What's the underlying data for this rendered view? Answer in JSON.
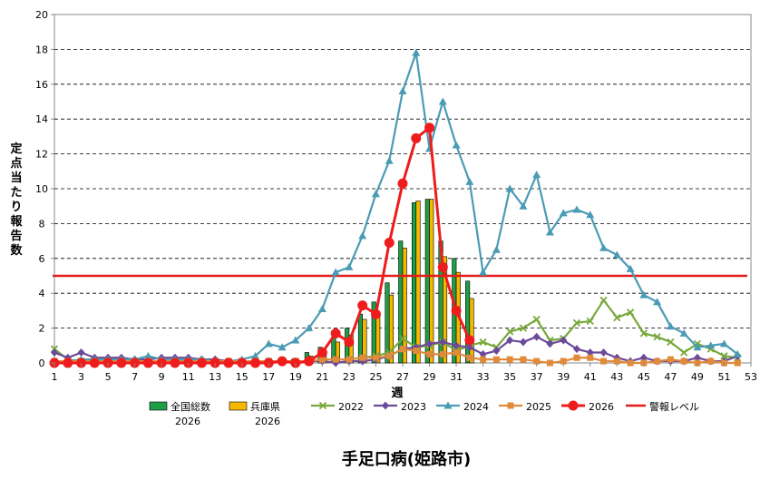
{
  "chart_data": {
    "type": "bar+line",
    "title": "手足口病(姫路市)",
    "ylabel": "定点当たり報告数",
    "xlabel": "週",
    "ylim": [
      0,
      20
    ],
    "yticks": [
      0,
      2,
      4,
      6,
      8,
      10,
      12,
      14,
      16,
      18,
      20
    ],
    "xlim": [
      1,
      53
    ],
    "xticks": [
      1,
      3,
      5,
      7,
      9,
      11,
      13,
      15,
      17,
      19,
      21,
      23,
      25,
      27,
      29,
      31,
      33,
      35,
      37,
      39,
      41,
      43,
      45,
      47,
      49,
      51,
      53
    ],
    "alert_level": 5,
    "alert_label": "警報レベル",
    "grid": "horizontal dashed",
    "legend_position": "bottom",
    "bar_series": [
      {
        "name": "全国総数",
        "name2": "2026",
        "color": "#1f9e48",
        "x": [
          19,
          20,
          21,
          22,
          23,
          24,
          25,
          26,
          27,
          28,
          29,
          30,
          31,
          32
        ],
        "values": [
          0.2,
          0.6,
          0.9,
          1.5,
          2.0,
          2.8,
          3.5,
          4.6,
          7.0,
          9.2,
          9.4,
          7.0,
          6.0,
          4.7
        ]
      },
      {
        "name": "兵庫県",
        "name2": "2026",
        "color": "#f5b800",
        "x": [
          19,
          20,
          21,
          22,
          23,
          24,
          25,
          26,
          27,
          28,
          29,
          30,
          31,
          32
        ],
        "values": [
          0.1,
          0.4,
          0.6,
          1.2,
          1.6,
          2.5,
          2.8,
          3.9,
          6.6,
          9.3,
          9.4,
          6.1,
          5.2,
          3.7
        ]
      }
    ],
    "line_series": [
      {
        "name": "2022",
        "color": "#77a83b",
        "marker": "x",
        "x": [
          1,
          2,
          3,
          4,
          5,
          6,
          7,
          8,
          9,
          10,
          11,
          12,
          13,
          14,
          15,
          16,
          17,
          18,
          19,
          20,
          21,
          22,
          23,
          24,
          25,
          26,
          27,
          28,
          29,
          30,
          31,
          32,
          33,
          34,
          35,
          36,
          37,
          38,
          39,
          40,
          41,
          42,
          43,
          44,
          45,
          46,
          47,
          48,
          49,
          50,
          51,
          52
        ],
        "values": [
          0.8,
          0.2,
          0.1,
          0.1,
          0.1,
          0.1,
          0.1,
          0.1,
          0.1,
          0.1,
          0.1,
          0.1,
          0.1,
          0.1,
          0.1,
          0.1,
          0.1,
          0.1,
          0.1,
          0.1,
          0.2,
          0.2,
          0.2,
          0.3,
          0.4,
          0.6,
          1.4,
          0.9,
          1.0,
          1.2,
          0.7,
          1.0,
          1.2,
          0.9,
          1.8,
          2.0,
          2.5,
          1.3,
          1.4,
          2.3,
          2.4,
          3.6,
          2.6,
          2.9,
          1.7,
          1.5,
          1.2,
          0.6,
          1.1,
          0.8,
          0.4,
          0.3
        ]
      },
      {
        "name": "2023",
        "color": "#6b4a9a",
        "marker": "diamond",
        "x": [
          1,
          2,
          3,
          4,
          5,
          6,
          7,
          8,
          9,
          10,
          11,
          12,
          13,
          14,
          15,
          16,
          17,
          18,
          19,
          20,
          21,
          22,
          23,
          24,
          25,
          26,
          27,
          28,
          29,
          30,
          31,
          32,
          33,
          34,
          35,
          36,
          37,
          38,
          39,
          40,
          41,
          42,
          43,
          44,
          45,
          46,
          47,
          48,
          49,
          50,
          51,
          52
        ],
        "values": [
          0.6,
          0.3,
          0.6,
          0.3,
          0.3,
          0.3,
          0.2,
          0.2,
          0.3,
          0.3,
          0.3,
          0.2,
          0.2,
          0.1,
          0.1,
          0.1,
          0.1,
          0.1,
          0.1,
          0.1,
          0.1,
          0.0,
          0.1,
          0.1,
          0.2,
          0.4,
          0.8,
          0.9,
          1.1,
          1.2,
          1.0,
          0.9,
          0.5,
          0.7,
          1.3,
          1.2,
          1.5,
          1.1,
          1.3,
          0.8,
          0.6,
          0.6,
          0.3,
          0.1,
          0.3,
          0.1,
          0.1,
          0.1,
          0.3,
          0.1,
          0.1,
          0.4
        ]
      },
      {
        "name": "2024",
        "color": "#4a9bb5",
        "marker": "triangle",
        "x": [
          1,
          2,
          3,
          4,
          5,
          6,
          7,
          8,
          9,
          10,
          11,
          12,
          13,
          14,
          15,
          16,
          17,
          18,
          19,
          20,
          21,
          22,
          23,
          24,
          25,
          26,
          27,
          28,
          29,
          30,
          31,
          32,
          33,
          34,
          35,
          36,
          37,
          38,
          39,
          40,
          41,
          42,
          43,
          44,
          45,
          46,
          47,
          48,
          49,
          50,
          51,
          52
        ],
        "values": [
          0.1,
          0.1,
          0.2,
          0.2,
          0.2,
          0.2,
          0.2,
          0.4,
          0.2,
          0.2,
          0.2,
          0.2,
          0.1,
          0.1,
          0.2,
          0.4,
          1.1,
          0.9,
          1.3,
          2.0,
          3.1,
          5.2,
          5.5,
          7.3,
          9.7,
          11.6,
          15.6,
          17.8,
          12.3,
          15.0,
          12.5,
          10.4,
          5.2,
          6.5,
          10.0,
          9.0,
          10.8,
          7.5,
          8.6,
          8.8,
          8.5,
          6.6,
          6.2,
          5.4,
          3.9,
          3.5,
          2.1,
          1.7,
          0.9,
          1.0,
          1.1,
          0.5
        ]
      },
      {
        "name": "2025",
        "color": "#e08a3a",
        "marker": "square",
        "x": [
          1,
          2,
          3,
          4,
          5,
          6,
          7,
          8,
          9,
          10,
          11,
          12,
          13,
          14,
          15,
          16,
          17,
          18,
          19,
          20,
          21,
          22,
          23,
          24,
          25,
          26,
          27,
          28,
          29,
          30,
          31,
          32,
          33,
          34,
          35,
          36,
          37,
          38,
          39,
          40,
          41,
          42,
          43,
          44,
          45,
          46,
          47,
          48,
          49,
          50,
          51,
          52
        ],
        "values": [
          0.1,
          0.1,
          0.1,
          0.1,
          0.1,
          0.1,
          0.1,
          0.1,
          0.1,
          0.1,
          0.1,
          0.1,
          0.1,
          0.1,
          0.1,
          0.1,
          0.1,
          0.1,
          0.1,
          0.1,
          0.2,
          0.2,
          0.2,
          0.3,
          0.3,
          0.4,
          0.8,
          0.7,
          0.5,
          0.5,
          0.6,
          0.3,
          0.2,
          0.2,
          0.2,
          0.2,
          0.1,
          0.0,
          0.1,
          0.3,
          0.3,
          0.1,
          0.1,
          0.0,
          0.0,
          0.1,
          0.2,
          0.1,
          0.0,
          0.1,
          0.0,
          0.0
        ]
      },
      {
        "name": "2026",
        "color": "#ee1c1c",
        "marker": "circle",
        "x": [
          1,
          2,
          3,
          4,
          5,
          6,
          7,
          8,
          9,
          10,
          11,
          12,
          13,
          14,
          15,
          16,
          17,
          18,
          19,
          20,
          21,
          22,
          23,
          24,
          25,
          26,
          27,
          28,
          29,
          30,
          31,
          32
        ],
        "values": [
          0.0,
          0.0,
          0.0,
          0.0,
          0.0,
          0.0,
          0.0,
          0.0,
          0.0,
          0.0,
          0.0,
          0.0,
          0.0,
          0.0,
          0.0,
          0.0,
          0.0,
          0.1,
          0.0,
          0.1,
          0.6,
          1.7,
          1.2,
          3.3,
          2.8,
          6.9,
          10.3,
          12.9,
          13.5,
          5.5,
          3.0,
          1.3
        ]
      }
    ]
  }
}
